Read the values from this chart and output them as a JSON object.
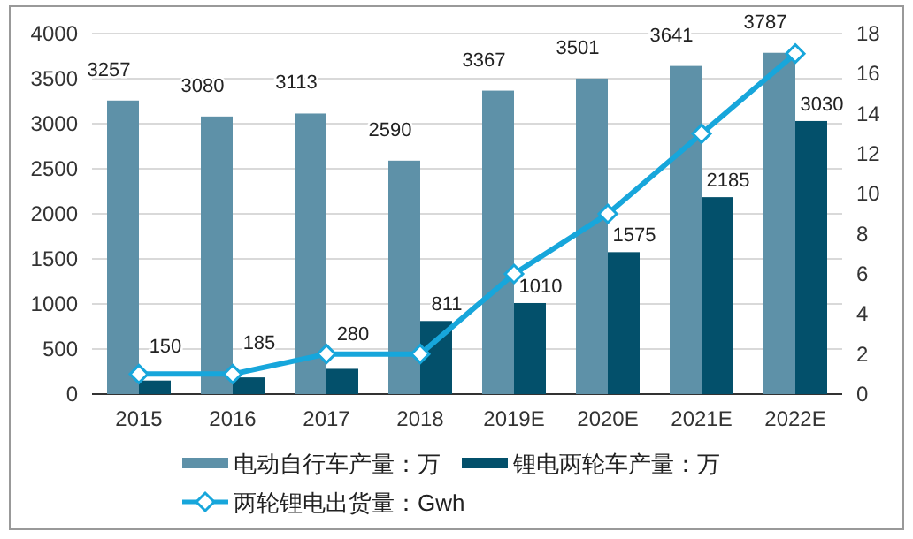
{
  "chart_data": {
    "type": "bar",
    "categories": [
      "2015",
      "2016",
      "2017",
      "2018",
      "2019E",
      "2020E",
      "2021E",
      "2022E"
    ],
    "series": [
      {
        "name": "电动自行车产量：万",
        "color": "#5e91a8",
        "values": [
          3257,
          3080,
          3113,
          2590,
          3367,
          3501,
          3641,
          3787
        ],
        "value_labels": [
          "3257",
          "3080",
          "3113",
          "2590",
          "3367",
          "3501",
          "3641",
          "3787"
        ]
      },
      {
        "name": "锂电两轮车产量：万",
        "color": "#03506b",
        "values": [
          150,
          185,
          280,
          811,
          1010,
          1575,
          2185,
          3030
        ],
        "value_labels": [
          "150",
          "185",
          "280",
          "811",
          "1010",
          "1575",
          "2185",
          "3030"
        ]
      },
      {
        "name": "两轮锂电出货量：Gwh",
        "type": "line",
        "axis": "y2",
        "color": "#17a6db",
        "marker": "diamond",
        "values": [
          1,
          1,
          2,
          2,
          6,
          9,
          13,
          17
        ]
      }
    ],
    "ylim": [
      0,
      4000
    ],
    "yticks": [
      0,
      500,
      1000,
      1500,
      2000,
      2500,
      3000,
      3500,
      4000
    ],
    "y2lim": [
      0,
      18
    ],
    "y2ticks": [
      0,
      2,
      4,
      6,
      8,
      10,
      12,
      14,
      16,
      18
    ],
    "grid": "y",
    "legend": "bottom"
  }
}
